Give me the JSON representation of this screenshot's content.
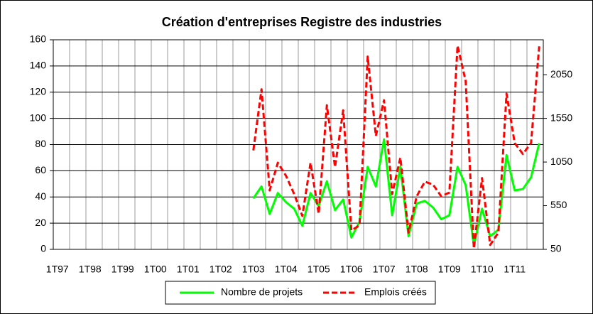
{
  "chart_data": {
    "type": "line",
    "title": "Création d'entreprises Registre des industries",
    "categories": [
      "1T97",
      null,
      null,
      null,
      "1T98",
      null,
      null,
      null,
      "1T99",
      null,
      null,
      null,
      "1T00",
      null,
      null,
      null,
      "1T01",
      null,
      null,
      null,
      "1T02",
      null,
      null,
      null,
      "1T03",
      null,
      null,
      null,
      "1T04",
      null,
      null,
      null,
      "1T05",
      null,
      null,
      null,
      "1T06",
      null,
      null,
      null,
      "1T07",
      null,
      null,
      null,
      "1T08",
      null,
      null,
      null,
      "1T09",
      null,
      null,
      null,
      "1T10",
      null,
      null,
      null,
      "1T11",
      null,
      null,
      null
    ],
    "series": [
      {
        "name": "Nombre de projets",
        "color": "#00ff00",
        "axis": "y",
        "values": [
          null,
          null,
          null,
          null,
          null,
          null,
          null,
          null,
          null,
          null,
          null,
          null,
          null,
          null,
          null,
          null,
          null,
          null,
          null,
          null,
          null,
          null,
          null,
          null,
          39,
          48,
          27,
          43,
          36,
          31,
          18,
          43,
          33,
          52,
          30,
          38,
          9,
          21,
          63,
          48,
          84,
          26,
          63,
          10,
          35,
          37,
          32,
          23,
          26,
          63,
          49,
          3,
          31,
          10,
          15,
          72,
          45,
          46,
          55,
          81
        ]
      },
      {
        "name": "Emplois créés",
        "color": "#ff0000",
        "axis": "y2",
        "dash": true,
        "values": [
          null,
          null,
          null,
          null,
          null,
          null,
          null,
          null,
          null,
          null,
          null,
          null,
          null,
          null,
          null,
          null,
          null,
          null,
          null,
          null,
          null,
          null,
          null,
          null,
          1183,
          1883,
          725,
          1042,
          892,
          683,
          433,
          1042,
          458,
          1700,
          992,
          1642,
          267,
          325,
          2258,
          1350,
          1758,
          683,
          1100,
          242,
          658,
          825,
          792,
          658,
          700,
          2383,
          1975,
          58,
          867,
          100,
          242,
          1833,
          1267,
          1142,
          1267,
          2375
        ]
      }
    ],
    "ylim": [
      0,
      160
    ],
    "yticks": [
      0,
      20,
      40,
      60,
      80,
      100,
      120,
      140,
      160
    ],
    "y2lim": [
      50,
      2450
    ],
    "y2ticks": [
      50,
      550,
      1050,
      1550,
      2050
    ],
    "grid": true,
    "legend": "bottom"
  }
}
